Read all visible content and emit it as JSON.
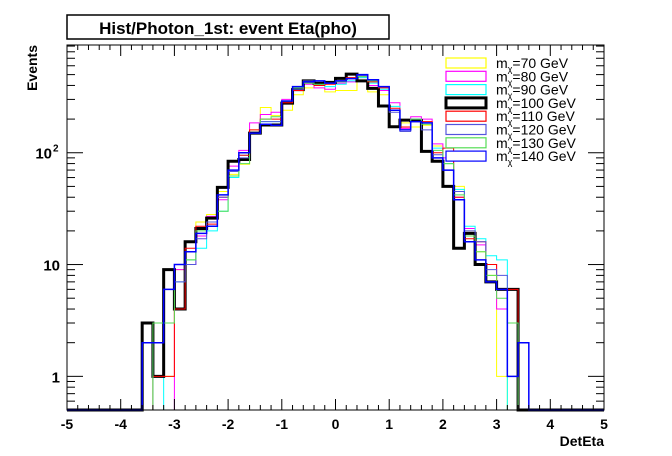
{
  "chart_data": {
    "type": "line",
    "title": "Hist/Photon_1st: event Eta(pho)",
    "xlabel": "DetEta",
    "ylabel": "Events",
    "xlim": [
      -5,
      5
    ],
    "ylim": [
      0.5,
      920
    ],
    "yscale": "log",
    "x_ticks": [
      "-5",
      "-4",
      "-3",
      "-2",
      "-1",
      "0",
      "1",
      "2",
      "3",
      "4",
      "5"
    ],
    "y_ticks": [
      {
        "value": 1,
        "label": "1"
      },
      {
        "value": 10,
        "label": "10"
      },
      {
        "value": 100,
        "label": "10",
        "sup": "2"
      }
    ],
    "bin_low": -3.6,
    "bin_width": 0.2,
    "legend_position": "top-right",
    "series": [
      {
        "name": "m_χ=70 GeV",
        "prefix": "m",
        "sub": "χ",
        "suffix": "=70 GeV",
        "color": "#ffff00",
        "width": 1,
        "values": [
          0,
          1,
          1,
          9,
          11,
          24,
          28,
          45,
          64,
          79,
          160,
          254,
          215,
          240,
          330,
          380,
          400,
          350,
          360,
          360,
          440,
          350,
          330,
          240,
          185,
          170,
          176,
          115,
          80,
          50,
          20,
          13,
          8,
          1,
          0,
          0
        ]
      },
      {
        "name": "m_χ=80 GeV",
        "prefix": "m",
        "sub": "χ",
        "suffix": "=80 GeV",
        "color": "#ff00ff",
        "width": 1,
        "values": [
          0,
          0,
          0,
          9,
          10,
          18,
          27,
          38,
          76,
          105,
          185,
          220,
          230,
          300,
          370,
          410,
          380,
          370,
          420,
          430,
          470,
          400,
          360,
          280,
          165,
          210,
          200,
          120,
          90,
          40,
          21,
          15,
          10,
          4,
          6,
          0
        ]
      },
      {
        "name": "m_χ=90 GeV",
        "prefix": "m",
        "sub": "χ",
        "suffix": "=90 GeV",
        "color": "#00ffff",
        "width": 1,
        "values": [
          0,
          0,
          9,
          7,
          11,
          14,
          20,
          30,
          60,
          95,
          150,
          190,
          190,
          290,
          380,
          420,
          410,
          390,
          410,
          440,
          470,
          420,
          370,
          260,
          170,
          200,
          185,
          110,
          80,
          47,
          22,
          17,
          12,
          11,
          0,
          0
        ]
      },
      {
        "name": "m_χ=100 GeV",
        "prefix": "m",
        "sub": "χ",
        "suffix": "=100 GeV",
        "color": "#000000",
        "width": 3,
        "values": [
          3,
          1,
          9,
          4,
          16,
          21,
          26,
          49,
          84,
          87,
          150,
          177,
          177,
          278,
          367,
          440,
          418,
          426,
          463,
          505,
          440,
          377,
          262,
          171,
          196,
          194,
          103,
          84,
          50,
          14,
          19,
          10,
          7,
          6,
          6,
          0
        ]
      },
      {
        "name": "m_χ=110 GeV",
        "prefix": "m",
        "sub": "χ",
        "suffix": "=110 GeV",
        "color": "#ff0000",
        "width": 1,
        "values": [
          0,
          1,
          1,
          4,
          14,
          22,
          23,
          40,
          70,
          95,
          160,
          200,
          200,
          280,
          360,
          420,
          400,
          410,
          440,
          470,
          490,
          430,
          380,
          250,
          170,
          190,
          190,
          100,
          110,
          40,
          17,
          16,
          10,
          6,
          6,
          0
        ]
      },
      {
        "name": "m_χ=120 GeV",
        "prefix": "m",
        "sub": "χ",
        "suffix": "=120 GeV",
        "color": "#5555dd",
        "width": 1,
        "values": [
          0,
          2,
          6,
          7,
          10,
          17,
          24,
          40,
          68,
          90,
          150,
          190,
          190,
          290,
          370,
          440,
          440,
          420,
          440,
          460,
          490,
          450,
          390,
          230,
          155,
          200,
          160,
          96,
          70,
          45,
          20,
          16,
          9,
          8,
          3,
          0
        ]
      },
      {
        "name": "m_χ=130 GeV",
        "prefix": "m",
        "sub": "χ",
        "suffix": "=130 GeV",
        "color": "#55dd55",
        "width": 1,
        "values": [
          0,
          3,
          3,
          10,
          11,
          20,
          22,
          30,
          62,
          80,
          150,
          200,
          210,
          290,
          380,
          420,
          410,
          420,
          430,
          460,
          480,
          440,
          390,
          240,
          160,
          200,
          180,
          105,
          80,
          42,
          18,
          13,
          8,
          5,
          3,
          0
        ]
      },
      {
        "name": "m_χ=140 GeV",
        "prefix": "m",
        "sub": "χ",
        "suffix": "=140 GeV",
        "color": "#0000ff",
        "width": 1.5,
        "values": [
          2,
          2,
          6,
          10,
          13,
          19,
          22,
          42,
          70,
          100,
          150,
          180,
          176,
          290,
          390,
          430,
          440,
          420,
          440,
          460,
          500,
          450,
          390,
          240,
          160,
          190,
          185,
          90,
          70,
          38,
          16,
          11,
          7,
          6,
          1,
          2
        ]
      }
    ]
  }
}
